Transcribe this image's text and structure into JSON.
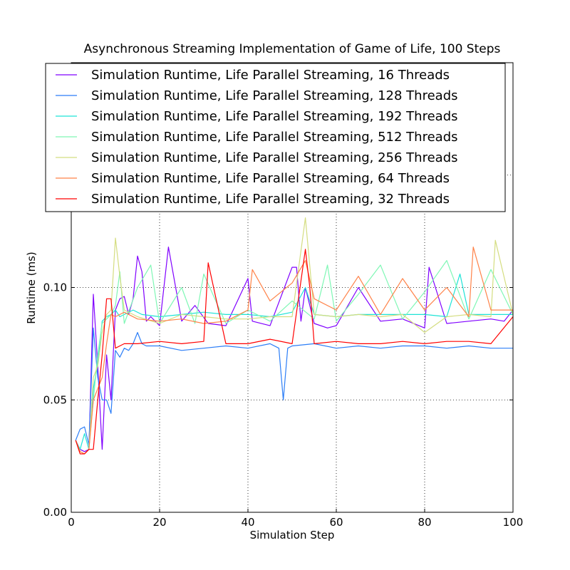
{
  "chart_data": {
    "type": "line",
    "title": "Asynchronous Streaming Implementation of Game of Life, 100 Steps",
    "xlabel": "Simulation Step",
    "ylabel": "Runtime (ms)",
    "xlim": [
      0,
      100
    ],
    "ylim": [
      0.0,
      0.2
    ],
    "xticks": [
      0,
      20,
      40,
      60,
      80,
      100
    ],
    "xtick_labels": [
      "0",
      "20",
      "40",
      "60",
      "80",
      "100"
    ],
    "yticks": [
      0.0,
      0.05,
      0.1
    ],
    "ytick_labels": [
      "0.00",
      "0.05",
      "0.10"
    ],
    "grid": true,
    "legend_position": "top",
    "series": [
      {
        "name": "Simulation Runtime, Life Parallel Streaming, 16 Threads",
        "color": "#8000ff",
        "x": [
          1,
          2,
          3,
          4,
          5,
          6,
          7,
          8,
          9,
          10,
          11,
          12,
          13,
          14,
          15,
          16,
          17,
          18,
          20,
          22,
          25,
          28,
          31,
          35,
          40,
          41,
          45,
          50,
          51,
          52,
          53,
          55,
          58,
          60,
          65,
          70,
          75,
          80,
          81,
          85,
          90,
          95,
          98,
          100
        ],
        "y": [
          0.032,
          0.028,
          0.027,
          0.028,
          0.097,
          0.065,
          0.028,
          0.07,
          0.05,
          0.09,
          0.095,
          0.096,
          0.088,
          0.095,
          0.114,
          0.107,
          0.085,
          0.087,
          0.083,
          0.118,
          0.085,
          0.092,
          0.084,
          0.083,
          0.104,
          0.085,
          0.083,
          0.109,
          0.109,
          0.085,
          0.1,
          0.084,
          0.082,
          0.083,
          0.1,
          0.085,
          0.086,
          0.082,
          0.109,
          0.084,
          0.085,
          0.086,
          0.085,
          0.09
        ]
      },
      {
        "name": "Simulation Runtime, Life Parallel Streaming, 128 Threads",
        "color": "#2c7ef7",
        "x": [
          1,
          2,
          3,
          4,
          5,
          6,
          7,
          8,
          9,
          10,
          11,
          12,
          13,
          14,
          15,
          16,
          17,
          20,
          25,
          30,
          35,
          40,
          45,
          47,
          48,
          49,
          50,
          55,
          60,
          65,
          70,
          75,
          80,
          85,
          90,
          95,
          100
        ],
        "y": [
          0.032,
          0.037,
          0.038,
          0.03,
          0.082,
          0.06,
          0.05,
          0.05,
          0.044,
          0.072,
          0.069,
          0.073,
          0.072,
          0.075,
          0.08,
          0.075,
          0.074,
          0.074,
          0.072,
          0.073,
          0.074,
          0.073,
          0.075,
          0.073,
          0.05,
          0.073,
          0.074,
          0.075,
          0.073,
          0.074,
          0.073,
          0.074,
          0.074,
          0.073,
          0.074,
          0.073,
          0.073
        ]
      },
      {
        "name": "Simulation Runtime, Life Parallel Streaming, 192 Threads",
        "color": "#1ee3d6",
        "x": [
          1,
          2,
          3,
          4,
          5,
          6,
          7,
          8,
          9,
          10,
          11,
          12,
          14,
          16,
          20,
          25,
          30,
          35,
          40,
          45,
          50,
          53,
          55,
          60,
          65,
          70,
          75,
          80,
          85,
          88,
          90,
          95,
          100
        ],
        "y": [
          0.032,
          0.028,
          0.035,
          0.028,
          0.055,
          0.066,
          0.085,
          0.087,
          0.088,
          0.09,
          0.087,
          0.088,
          0.09,
          0.088,
          0.087,
          0.088,
          0.089,
          0.088,
          0.088,
          0.087,
          0.089,
          0.1,
          0.088,
          0.087,
          0.088,
          0.088,
          0.088,
          0.088,
          0.087,
          0.106,
          0.088,
          0.088,
          0.088
        ]
      },
      {
        "name": "Simulation Runtime, Life Parallel Streaming, 512 Threads",
        "color": "#7ff7b5",
        "x": [
          1,
          2,
          3,
          4,
          5,
          6,
          7,
          8,
          9,
          10,
          11,
          12,
          15,
          18,
          20,
          25,
          28,
          30,
          35,
          40,
          45,
          50,
          55,
          58,
          60,
          65,
          70,
          75,
          80,
          85,
          90,
          95,
          100
        ],
        "y": [
          0.032,
          0.027,
          0.026,
          0.028,
          0.05,
          0.07,
          0.084,
          0.086,
          0.088,
          0.092,
          0.107,
          0.084,
          0.1,
          0.11,
          0.084,
          0.1,
          0.084,
          0.106,
          0.084,
          0.09,
          0.085,
          0.094,
          0.086,
          0.11,
          0.085,
          0.097,
          0.11,
          0.086,
          0.098,
          0.112,
          0.086,
          0.108,
          0.088
        ]
      },
      {
        "name": "Simulation Runtime, Life Parallel Streaming, 256 Threads",
        "color": "#d4dd80",
        "x": [
          1,
          2,
          3,
          4,
          5,
          6,
          7,
          8,
          9,
          10,
          11,
          12,
          15,
          20,
          25,
          30,
          35,
          40,
          45,
          50,
          53,
          55,
          60,
          65,
          70,
          75,
          80,
          85,
          90,
          95,
          96,
          100
        ],
        "y": [
          0.032,
          0.027,
          0.026,
          0.028,
          0.06,
          0.065,
          0.08,
          0.088,
          0.09,
          0.122,
          0.105,
          0.09,
          0.087,
          0.084,
          0.088,
          0.087,
          0.086,
          0.086,
          0.087,
          0.087,
          0.131,
          0.088,
          0.087,
          0.088,
          0.087,
          0.088,
          0.08,
          0.087,
          0.088,
          0.087,
          0.121,
          0.088
        ]
      },
      {
        "name": "Simulation Runtime, Life Parallel Streaming, 64 Threads",
        "color": "#ff8248",
        "x": [
          1,
          2,
          3,
          4,
          5,
          6,
          7,
          8,
          9,
          10,
          11,
          12,
          15,
          20,
          25,
          30,
          35,
          40,
          41,
          45,
          50,
          53,
          55,
          60,
          65,
          70,
          75,
          80,
          85,
          90,
          91,
          95,
          100
        ],
        "y": [
          0.032,
          0.027,
          0.026,
          0.028,
          0.05,
          0.055,
          0.06,
          0.075,
          0.088,
          0.087,
          0.088,
          0.089,
          0.086,
          0.085,
          0.086,
          0.084,
          0.085,
          0.09,
          0.108,
          0.094,
          0.102,
          0.112,
          0.095,
          0.09,
          0.105,
          0.088,
          0.104,
          0.09,
          0.1,
          0.087,
          0.118,
          0.09,
          0.09
        ]
      },
      {
        "name": "Simulation Runtime, Life Parallel Streaming, 32 Threads",
        "color": "#ff0000",
        "x": [
          1,
          2,
          3,
          4,
          5,
          6,
          7,
          8,
          9,
          10,
          11,
          12,
          15,
          20,
          25,
          30,
          31,
          35,
          40,
          45,
          50,
          53,
          54,
          55,
          60,
          65,
          70,
          75,
          80,
          85,
          90,
          95,
          100
        ],
        "y": [
          0.032,
          0.026,
          0.026,
          0.028,
          0.028,
          0.05,
          0.07,
          0.095,
          0.095,
          0.073,
          0.074,
          0.075,
          0.075,
          0.076,
          0.075,
          0.076,
          0.111,
          0.075,
          0.075,
          0.077,
          0.075,
          0.117,
          0.1,
          0.075,
          0.076,
          0.075,
          0.075,
          0.076,
          0.075,
          0.076,
          0.076,
          0.075,
          0.087
        ]
      }
    ]
  }
}
